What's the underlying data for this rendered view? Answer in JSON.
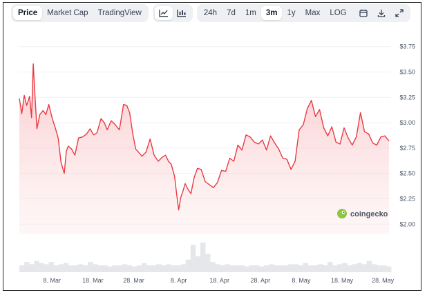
{
  "tabs": [
    {
      "label": "Price",
      "active": true
    },
    {
      "label": "Market Cap",
      "active": false
    },
    {
      "label": "TradingView",
      "active": false
    }
  ],
  "chart_toggles": [
    {
      "icon": "line-chart-icon",
      "active": true
    },
    {
      "icon": "candlestick-chart-icon",
      "active": false
    }
  ],
  "ranges": [
    {
      "label": "24h",
      "active": false
    },
    {
      "label": "7d",
      "active": false
    },
    {
      "label": "1m",
      "active": false
    },
    {
      "label": "3m",
      "active": true
    },
    {
      "label": "1y",
      "active": false
    },
    {
      "label": "Max",
      "active": false
    },
    {
      "label": "LOG",
      "active": false
    }
  ],
  "tools": [
    {
      "icon": "calendar-icon"
    },
    {
      "icon": "download-icon"
    },
    {
      "icon": "expand-icon"
    }
  ],
  "watermark": "coingecko",
  "colors": {
    "line": "#ea3943",
    "fill": "#fde2e3",
    "volume": "#e5e7eb",
    "grid": "#eef0f2"
  },
  "chart_data": {
    "type": "area",
    "y_ticks": [
      "$3.75",
      "$3.50",
      "$3.25",
      "$3.00",
      "$2.75",
      "$2.50",
      "$2.25",
      "$2.00"
    ],
    "y_tick_values": [
      3.75,
      3.5,
      3.25,
      3.0,
      2.75,
      2.5,
      2.25,
      2.0
    ],
    "ylim": [
      1.9,
      3.85
    ],
    "x_ticks": [
      "8. Mar",
      "18. Mar",
      "28. Mar",
      "8. Apr",
      "18. Apr",
      "28. Apr",
      "8. May",
      "18. May",
      "28. May"
    ],
    "x_tick_days": [
      8,
      18,
      28,
      39,
      49,
      59,
      69,
      79,
      89
    ],
    "xlim": [
      0,
      91
    ],
    "x_unit": "days since 29. Feb",
    "series": [
      {
        "x": [
          0,
          0.6,
          1.2,
          1.8,
          2.5,
          3.0,
          3.4,
          3.8,
          4.3,
          5.0,
          5.8,
          6.5,
          7.2,
          8.0,
          8.8,
          9.5,
          10.2,
          11.0,
          11.5,
          12.0,
          12.8,
          13.6,
          14.5,
          15.5,
          16.5,
          17.3,
          18.2,
          19.0,
          20.0,
          20.8,
          21.5,
          22.5,
          23.5,
          24.5,
          25.5,
          26.3,
          27.0,
          27.8,
          28.5,
          29.2,
          30.0,
          31.0,
          32.0,
          33.0,
          34.0,
          35.0,
          35.8,
          36.5,
          37.2,
          38.0,
          38.5,
          39.0,
          39.5,
          40.0,
          40.6,
          41.2,
          42.0,
          42.8,
          43.6,
          44.5,
          45.5,
          46.5,
          47.5,
          48.5,
          49.5,
          50.5,
          51.5,
          52.5,
          53.5,
          54.5,
          55.5,
          56.5,
          57.5,
          58.5,
          59.5,
          60.5,
          61.5,
          62.5,
          63.5,
          64.5,
          65.5,
          66.5,
          67.5,
          68.5,
          69.5,
          70.5,
          71.5,
          72.5,
          73.5,
          74.5,
          75.5,
          76.5,
          77.5,
          78.5,
          79.5,
          80.5,
          81.5,
          82.5,
          83.5,
          84.5,
          85.5,
          86.5,
          87.5,
          88.5,
          89.5,
          90.5
        ],
        "values": [
          3.24,
          3.09,
          3.27,
          3.17,
          3.26,
          3.05,
          3.58,
          3.28,
          2.94,
          3.08,
          3.12,
          3.08,
          3.18,
          3.05,
          2.95,
          2.85,
          2.61,
          2.5,
          2.72,
          2.77,
          2.74,
          2.68,
          2.85,
          2.86,
          2.89,
          2.94,
          2.88,
          2.9,
          3.04,
          3.0,
          2.93,
          3.02,
          2.98,
          2.93,
          3.18,
          3.17,
          3.1,
          2.88,
          2.74,
          2.71,
          2.67,
          2.71,
          2.84,
          2.68,
          2.62,
          2.66,
          2.68,
          2.62,
          2.59,
          2.47,
          2.3,
          2.14,
          2.26,
          2.32,
          2.4,
          2.35,
          2.3,
          2.46,
          2.55,
          2.54,
          2.42,
          2.39,
          2.36,
          2.41,
          2.53,
          2.52,
          2.65,
          2.62,
          2.78,
          2.73,
          2.88,
          2.86,
          2.81,
          2.79,
          2.83,
          2.73,
          2.87,
          2.8,
          2.74,
          2.65,
          2.64,
          2.54,
          2.62,
          2.93,
          2.98,
          3.14,
          3.22,
          3.06,
          3.13,
          2.95,
          2.87,
          2.96,
          2.81,
          2.79,
          2.95,
          2.85,
          2.78,
          2.86,
          3.1,
          2.91,
          2.89,
          2.8,
          2.78,
          2.86,
          2.87,
          2.82
        ]
      }
    ],
    "volume": [
      0.6,
      0.9,
      0.7,
      1.0,
      0.8,
      0.7,
      0.9,
      0.6,
      0.7,
      0.8,
      0.6,
      0.6,
      0.7,
      0.6,
      0.9,
      0.7,
      0.6,
      0.6,
      0.5,
      0.6,
      0.6,
      0.7,
      0.6,
      0.5,
      0.6,
      0.8,
      0.6,
      0.6,
      0.7,
      0.6,
      0.7,
      0.6,
      0.6,
      0.7,
      1.1,
      2.4,
      1.4,
      2.6,
      1.6,
      0.9,
      0.7,
      0.6,
      0.7,
      0.6,
      0.6,
      0.6,
      0.5,
      0.6,
      0.6,
      0.5,
      0.6,
      0.7,
      0.6,
      0.6,
      0.6,
      0.7,
      0.7,
      0.6,
      0.8,
      0.6,
      0.6,
      0.7,
      0.6,
      0.9,
      0.6,
      0.7,
      0.8,
      0.6,
      0.7,
      0.8,
      0.7,
      1.0,
      0.7,
      0.6,
      0.6,
      0.5
    ]
  }
}
